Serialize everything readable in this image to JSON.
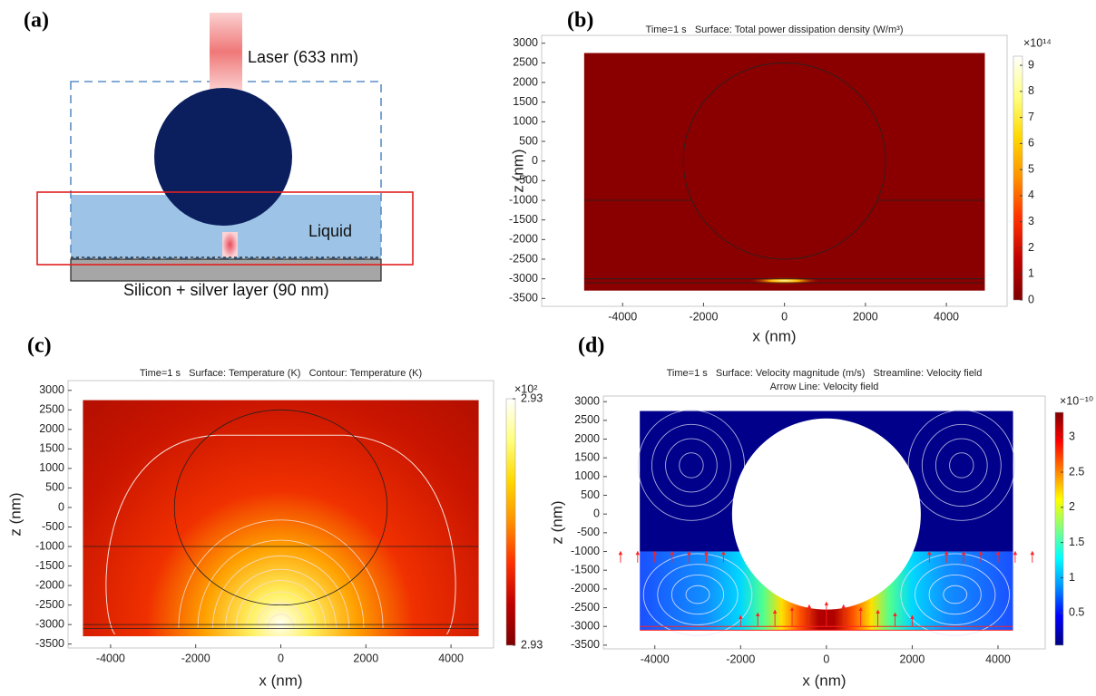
{
  "diagram": {
    "label": "(a)",
    "laser": "Laser (633 nm)",
    "liquid": "Liquid",
    "substrate": "Silicon + silver layer (90 nm)"
  },
  "chart_data": [
    {
      "type": "heatmap",
      "panel": "(b)",
      "title": [
        "Time=1 s   Surface: Total power dissipation density (W/m³)"
      ],
      "xlabel": "x (nm)",
      "ylabel": "z (nm)",
      "xlim": [
        -6000,
        5500
      ],
      "ylim": [
        -3700,
        3200
      ],
      "xticks": [
        -4000,
        -2000,
        0,
        2000,
        4000
      ],
      "yticks": [
        3000,
        2500,
        2000,
        1500,
        1000,
        500,
        0,
        -500,
        -1000,
        -1500,
        -2000,
        -2500,
        -3000,
        -3500
      ],
      "colorbar": {
        "multiplier": "×10¹⁴",
        "lim": [
          0,
          9.35
        ],
        "ticks": [
          0,
          1,
          2,
          3,
          4,
          5,
          6,
          7,
          8,
          9
        ],
        "colors": [
          "#7f0000",
          "#c00000",
          "#ff3000",
          "#ff9000",
          "#ffd800",
          "#ffff80",
          "#ffffff"
        ]
      }
    },
    {
      "type": "heatmap",
      "panel": "(c)",
      "title": [
        "Time=1 s   Surface: Temperature (K)   Contour: Temperature (K)"
      ],
      "xlabel": "x (nm)",
      "ylabel": "z (nm)",
      "xlim": [
        -5000,
        5000
      ],
      "ylim": [
        -3600,
        3250
      ],
      "xticks": [
        -4000,
        -2000,
        0,
        2000,
        4000
      ],
      "yticks": [
        3000,
        2500,
        2000,
        1500,
        1000,
        500,
        0,
        -500,
        -1000,
        -1500,
        -2000,
        -2500,
        -3000,
        -3500
      ],
      "colorbar": {
        "multiplier": "×10²",
        "lim": [
          2.9255,
          2.9345
        ],
        "ticks": [
          {
            "value": 2.9255,
            "label": "2.93"
          },
          {
            "value": 2.9345,
            "label": "2.93"
          }
        ],
        "colors": [
          "#7f0000",
          "#c00000",
          "#ff3000",
          "#ff9000",
          "#ffd800",
          "#ffff80",
          "#ffffff"
        ]
      }
    },
    {
      "type": "heatmap",
      "panel": "(d)",
      "title": [
        "Time=1 s   Surface: Velocity magnitude (m/s)   Streamline: Velocity field",
        "Arrow Line: Velocity field"
      ],
      "xlabel": "x (nm)",
      "ylabel": "z (nm)",
      "xlim": [
        -5200,
        5100
      ],
      "ylim": [
        -3600,
        3150
      ],
      "xticks": [
        -4000,
        -2000,
        0,
        2000,
        4000
      ],
      "yticks": [
        3000,
        2500,
        2000,
        1500,
        1000,
        500,
        0,
        -500,
        -1000,
        -1500,
        -2000,
        -2500,
        -3000,
        -3500
      ],
      "colorbar": {
        "multiplier": "×10⁻¹⁰",
        "lim": [
          0.04,
          3.35
        ],
        "ticks": [
          0.5,
          1,
          1.5,
          2,
          2.5,
          3
        ],
        "colors": [
          "#00007f",
          "#0000ff",
          "#0090ff",
          "#00ffff",
          "#80ff80",
          "#ffff00",
          "#ff8000",
          "#ff0000",
          "#7f0000"
        ]
      }
    }
  ]
}
